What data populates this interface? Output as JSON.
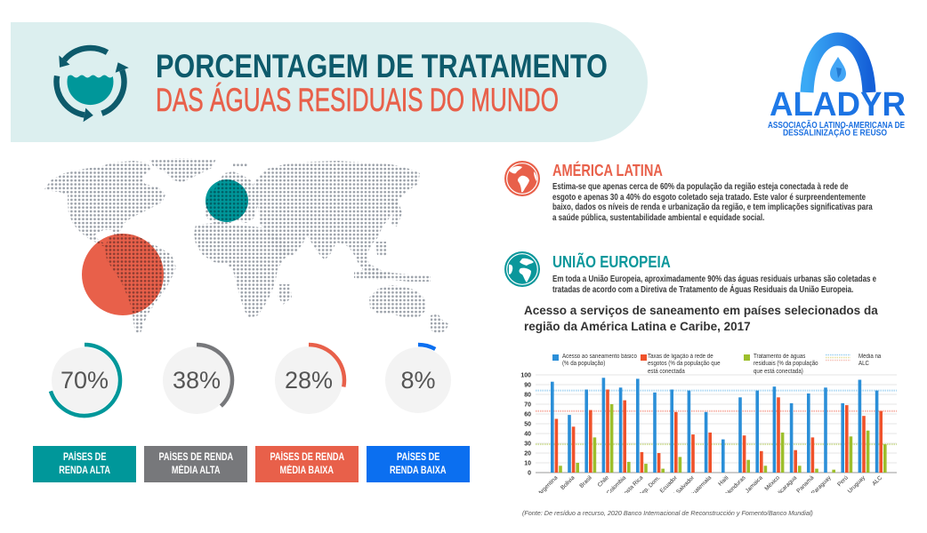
{
  "header": {
    "title_line1": "PORCENTAGEM DE TRATAMENTO",
    "title_line2": "DAS ÁGUAS RESIDUAIS DO MUNDO",
    "icon": "water-recycle-icon",
    "colors": {
      "banner_bg": "#dcefef",
      "title_line1": "#0d5a6b",
      "title_line2": "#e8604a",
      "icon_ring": "#0d5a6b",
      "icon_water": "#00979a"
    }
  },
  "logo": {
    "name": "ALADYR",
    "subtitle_line1": "ASSOCIAÇÃO LATINO-AMERICANA DE",
    "subtitle_line2": "DESSALINIZAÇÃO E REÚSO",
    "color": "#1a72e6"
  },
  "map": {
    "icon": "dotted-world-map",
    "highlight_colors": {
      "latin_america": "#e8604a",
      "europe": "#00979a"
    },
    "dot_color": "#9aa0a8"
  },
  "income_groups": [
    {
      "percent": 70,
      "label": "70%",
      "title_lines": [
        "PAÍSES DE",
        "RENDA ALTA"
      ],
      "color": "#00979a"
    },
    {
      "percent": 38,
      "label": "38%",
      "title_lines": [
        "PAÍSES DE RENDA",
        "MÉDIA ALTA"
      ],
      "color": "#77787b"
    },
    {
      "percent": 28,
      "label": "28%",
      "title_lines": [
        "PAÍSES DE RENDA",
        "MÉDIA BAIXA"
      ],
      "color": "#e8604a"
    },
    {
      "percent": 8,
      "label": "8%",
      "title_lines": [
        "PAÍSES DE",
        "RENDA BAIXA"
      ],
      "color": "#0b6ff0"
    }
  ],
  "sections": [
    {
      "icon": "globe-americas-icon",
      "title": "AMÉRICA LATINA",
      "color": "#e8604a",
      "lines": [
        "Estima-se que apenas cerca de 60% da população da região esteja conectada à rede de",
        "esgoto e apenas 30 a 40% do esgoto coletado seja tratado. Este valor é surpreendentemente",
        "baixo, dados os níveis de renda e urbanização da região, e tem implicações significativas para",
        "a saúde pública, sustentabilidade ambiental e equidade social."
      ]
    },
    {
      "icon": "globe-europe-africa-icon",
      "title": "UNIÃO EUROPEIA",
      "color": "#0a979b",
      "lines": [
        "Em toda a União Europeia, aproximadamente 90% das águas residuais urbanas são coletadas e",
        "tratadas de acordo com a Diretiva de Tratamento de Águas Residuais da União Europeia."
      ]
    }
  ],
  "chart_data": {
    "type": "bar",
    "title": "Acesso a serviços de saneamento em países selecionados da região da América Latina e Caribe, 2017",
    "xlabel": "",
    "ylabel": "",
    "ylim": [
      0,
      100
    ],
    "yticks": [
      0,
      10,
      20,
      30,
      40,
      50,
      60,
      70,
      80,
      90,
      100
    ],
    "grid": true,
    "legend_position": "top",
    "categories": [
      "Argentina",
      "Bolivia",
      "Brasil",
      "Chile",
      "Colombia",
      "Costa Rica",
      "Rep. Dom.",
      "Ecuador",
      "El Salvador",
      "Guatemala",
      "Haiti",
      "Honduras",
      "Jamaica",
      "México",
      "Nicaragua",
      "Panamá",
      "Paraguay",
      "Perú",
      "Uruguay",
      "ALC"
    ],
    "series": [
      {
        "name": "Acesso ao saneamento básico (% da população)",
        "color": "#2b8fd8",
        "values": [
          93,
          59,
          85,
          97,
          87,
          96,
          82,
          85,
          84,
          62,
          34,
          77,
          84,
          88,
          71,
          81,
          87,
          71,
          95,
          84
        ]
      },
      {
        "name": "Taxas de ligação à rede de esgotos (% da população que está conectada",
        "color": "#f0522b",
        "values": [
          55,
          47,
          64,
          85,
          74,
          21,
          20,
          62,
          39,
          41,
          null,
          38,
          22,
          77,
          23,
          36,
          null,
          69,
          58,
          63
        ]
      },
      {
        "name": "Tratamento de águas residuais (% da população que está conectada)",
        "color": "#9dbf2c",
        "values": [
          7,
          10,
          36,
          70,
          11,
          9,
          4,
          16,
          null,
          null,
          null,
          13,
          7,
          41,
          7,
          4,
          3,
          37,
          43,
          29
        ]
      }
    ],
    "reference_lines": {
      "label": "Média na ALC",
      "lines": [
        {
          "series": 0,
          "value": 84,
          "color": "#9fd2f2"
        },
        {
          "series": 1,
          "value": 63,
          "color": "#f6a59a"
        },
        {
          "series": 2,
          "value": 29,
          "color": "#c9da8c"
        }
      ]
    },
    "source": "(Fonte: De resíduo a recurso, 2020 Banco Internacional de Reconstrucción y Fomento/Banco Mundial)"
  }
}
